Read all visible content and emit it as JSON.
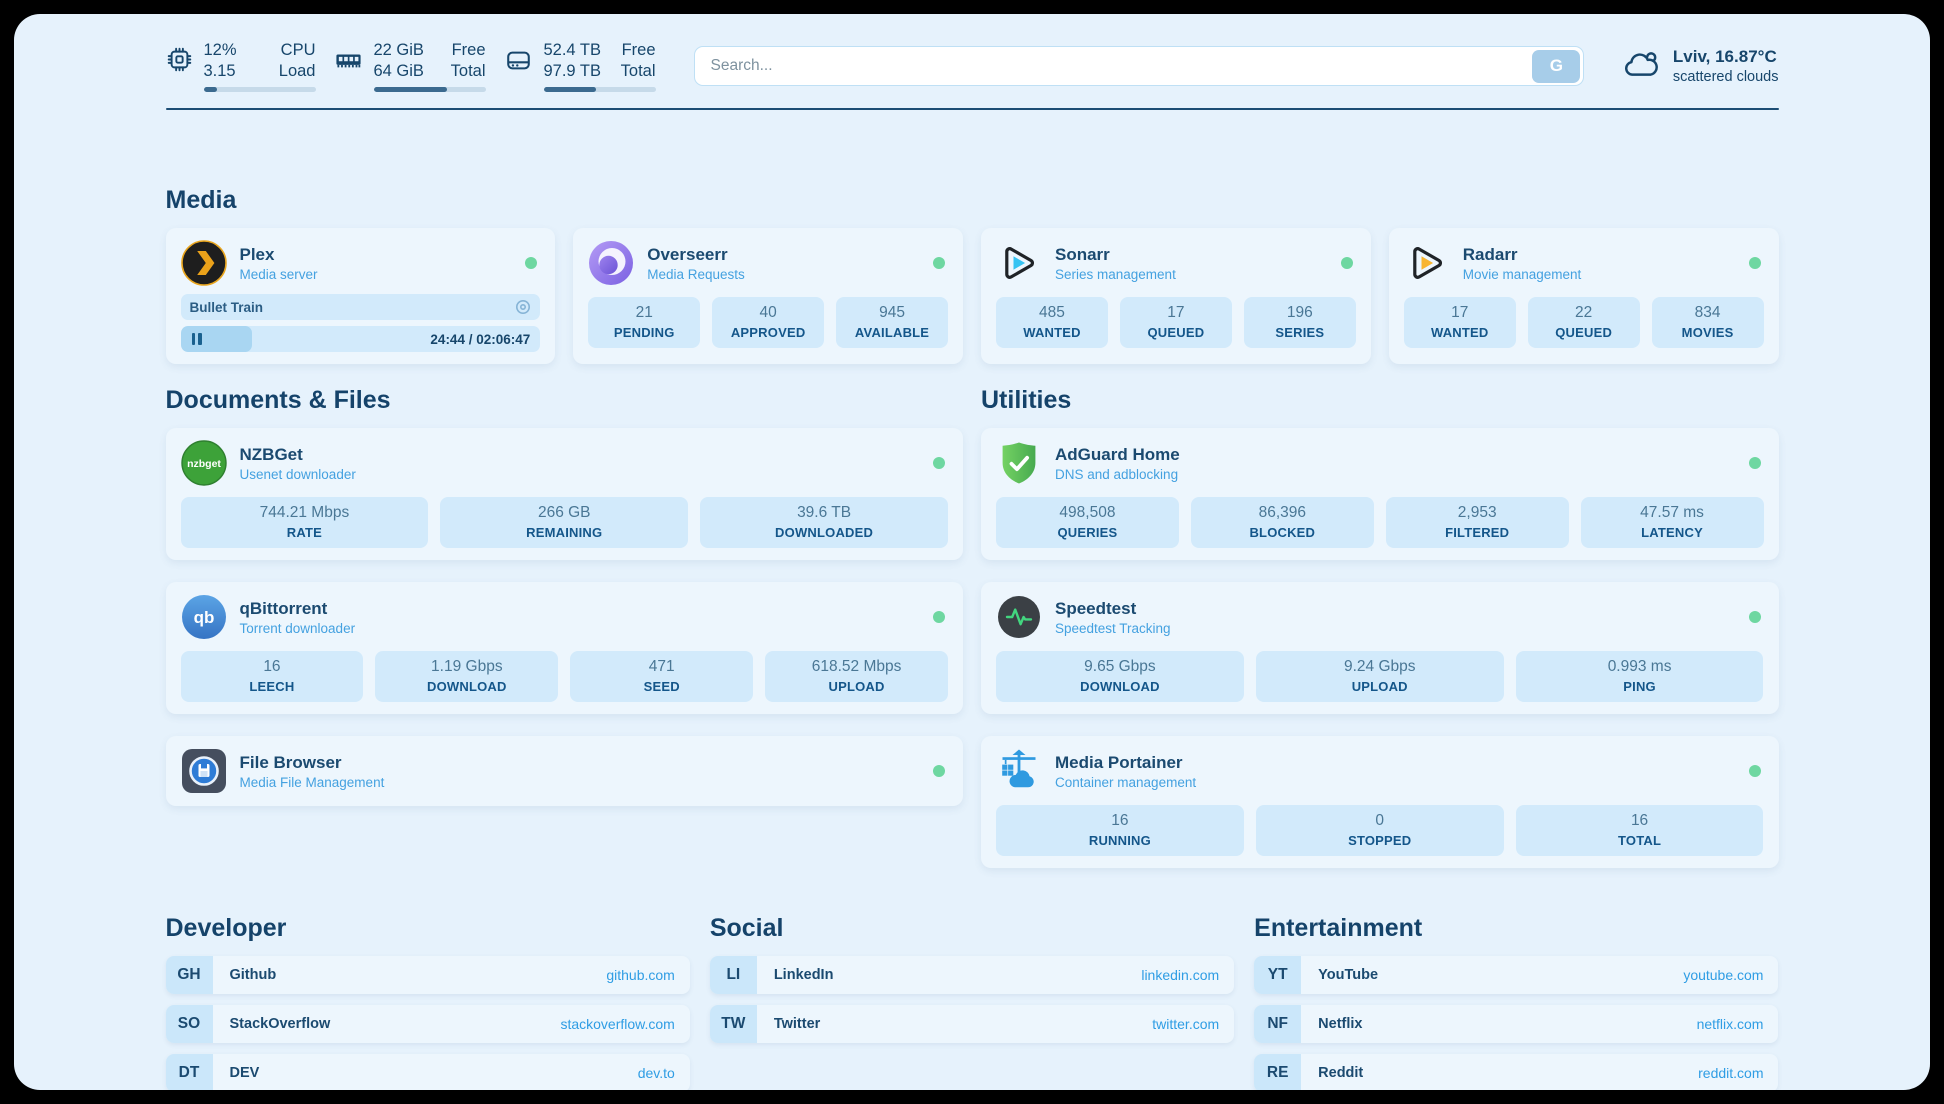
{
  "topbar": {
    "stats": [
      {
        "value_top": "12%",
        "value_bottom": "3.15",
        "label_top": "CPU",
        "label_bottom": "Load",
        "progress_pct": 12
      },
      {
        "value_top": "22 GiB",
        "value_bottom": "64 GiB",
        "label_top": "Free",
        "label_bottom": "Total",
        "progress_pct": 66
      },
      {
        "value_top": "52.4 TB",
        "value_bottom": "97.9 TB",
        "label_top": "Free",
        "label_bottom": "Total",
        "progress_pct": 47
      }
    ],
    "search": {
      "placeholder": "Search...",
      "button_label": "G"
    },
    "weather": {
      "location_temp": "Lviv, 16.87°C",
      "condition": "scattered clouds"
    }
  },
  "sections": {
    "media": {
      "title": "Media",
      "plex": {
        "name": "Plex",
        "subtitle": "Media server",
        "now_playing": "Bullet Train",
        "time": "24:44 / 02:06:47",
        "progress_pct": 20
      },
      "overseerr": {
        "name": "Overseerr",
        "subtitle": "Media Requests",
        "stats": [
          {
            "value": "21",
            "label": "PENDING"
          },
          {
            "value": "40",
            "label": "APPROVED"
          },
          {
            "value": "945",
            "label": "AVAILABLE"
          }
        ]
      },
      "sonarr": {
        "name": "Sonarr",
        "subtitle": "Series management",
        "stats": [
          {
            "value": "485",
            "label": "WANTED"
          },
          {
            "value": "17",
            "label": "QUEUED"
          },
          {
            "value": "196",
            "label": "SERIES"
          }
        ]
      },
      "radarr": {
        "name": "Radarr",
        "subtitle": "Movie management",
        "stats": [
          {
            "value": "17",
            "label": "WANTED"
          },
          {
            "value": "22",
            "label": "QUEUED"
          },
          {
            "value": "834",
            "label": "MOVIES"
          }
        ]
      }
    },
    "documents": {
      "title": "Documents & Files",
      "nzbget": {
        "name": "NZBGet",
        "subtitle": "Usenet downloader",
        "icon_text": "nzbget",
        "stats": [
          {
            "value": "744.21 Mbps",
            "label": "RATE"
          },
          {
            "value": "266 GB",
            "label": "REMAINING"
          },
          {
            "value": "39.6 TB",
            "label": "DOWNLOADED"
          }
        ]
      },
      "qbittorrent": {
        "name": "qBittorrent",
        "subtitle": "Torrent downloader",
        "icon_text": "qb",
        "stats": [
          {
            "value": "16",
            "label": "LEECH"
          },
          {
            "value": "1.19 Gbps",
            "label": "DOWNLOAD"
          },
          {
            "value": "471",
            "label": "SEED"
          },
          {
            "value": "618.52 Mbps",
            "label": "UPLOAD"
          }
        ]
      },
      "filebrowser": {
        "name": "File Browser",
        "subtitle": "Media File Management"
      }
    },
    "utilities": {
      "title": "Utilities",
      "adguard": {
        "name": "AdGuard Home",
        "subtitle": "DNS and adblocking",
        "stats": [
          {
            "value": "498,508",
            "label": "QUERIES"
          },
          {
            "value": "86,396",
            "label": "BLOCKED"
          },
          {
            "value": "2,953",
            "label": "FILTERED"
          },
          {
            "value": "47.57 ms",
            "label": "LATENCY"
          }
        ]
      },
      "speedtest": {
        "name": "Speedtest",
        "subtitle": "Speedtest Tracking",
        "stats": [
          {
            "value": "9.65 Gbps",
            "label": "DOWNLOAD"
          },
          {
            "value": "9.24 Gbps",
            "label": "UPLOAD"
          },
          {
            "value": "0.993 ms",
            "label": "PING"
          }
        ]
      },
      "portainer": {
        "name": "Media Portainer",
        "subtitle": "Container management",
        "stats": [
          {
            "value": "16",
            "label": "RUNNING"
          },
          {
            "value": "0",
            "label": "STOPPED"
          },
          {
            "value": "16",
            "label": "TOTAL"
          }
        ]
      }
    },
    "developer": {
      "title": "Developer",
      "links": [
        {
          "abbr": "GH",
          "name": "Github",
          "domain": "github.com"
        },
        {
          "abbr": "SO",
          "name": "StackOverflow",
          "domain": "stackoverflow.com"
        },
        {
          "abbr": "DT",
          "name": "DEV",
          "domain": "dev.to"
        }
      ]
    },
    "social": {
      "title": "Social",
      "links": [
        {
          "abbr": "LI",
          "name": "LinkedIn",
          "domain": "linkedin.com"
        },
        {
          "abbr": "TW",
          "name": "Twitter",
          "domain": "twitter.com"
        }
      ]
    },
    "entertainment": {
      "title": "Entertainment",
      "links": [
        {
          "abbr": "YT",
          "name": "YouTube",
          "domain": "youtube.com"
        },
        {
          "abbr": "NF",
          "name": "Netflix",
          "domain": "netflix.com"
        },
        {
          "abbr": "RE",
          "name": "Reddit",
          "domain": "reddit.com"
        }
      ]
    }
  },
  "colors": {
    "status_green": "#6ed7a1",
    "link_blue": "#2f9de4",
    "heading_blue": "#17466b",
    "tile_blue": "#d2eafb"
  }
}
